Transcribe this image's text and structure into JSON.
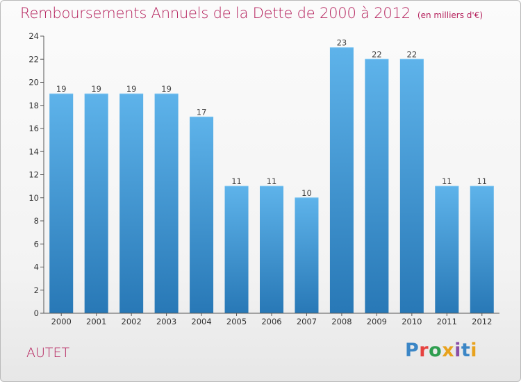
{
  "chart_data": {
    "type": "bar",
    "title": "Remboursements Annuels de la Dette de 2000 à 2012",
    "unit_note": "(en milliers d'€)",
    "categories": [
      "2000",
      "2001",
      "2002",
      "2003",
      "2004",
      "2005",
      "2006",
      "2007",
      "2008",
      "2009",
      "2010",
      "2011",
      "2012"
    ],
    "values": [
      19,
      19,
      19,
      19,
      17,
      11,
      11,
      10,
      23,
      22,
      22,
      11,
      11
    ],
    "ylim": [
      0,
      24
    ],
    "yticks": [
      0,
      2,
      4,
      6,
      8,
      10,
      12,
      14,
      16,
      18,
      20,
      22,
      24
    ],
    "grid": false,
    "legend": "none",
    "bar_color_top": "#5eb3ea",
    "bar_color_bottom": "#2878b6"
  },
  "footer": {
    "commune": "AUTET",
    "logo_text": "Proxiti",
    "logo_colors": [
      "#3b86c6",
      "#e6423f",
      "#2e9e4f",
      "#e8a21d",
      "#8a4ea6",
      "#3b86c6",
      "#e8a21d"
    ]
  },
  "colors": {
    "accent": "#b5225d",
    "axis": "#555555"
  }
}
